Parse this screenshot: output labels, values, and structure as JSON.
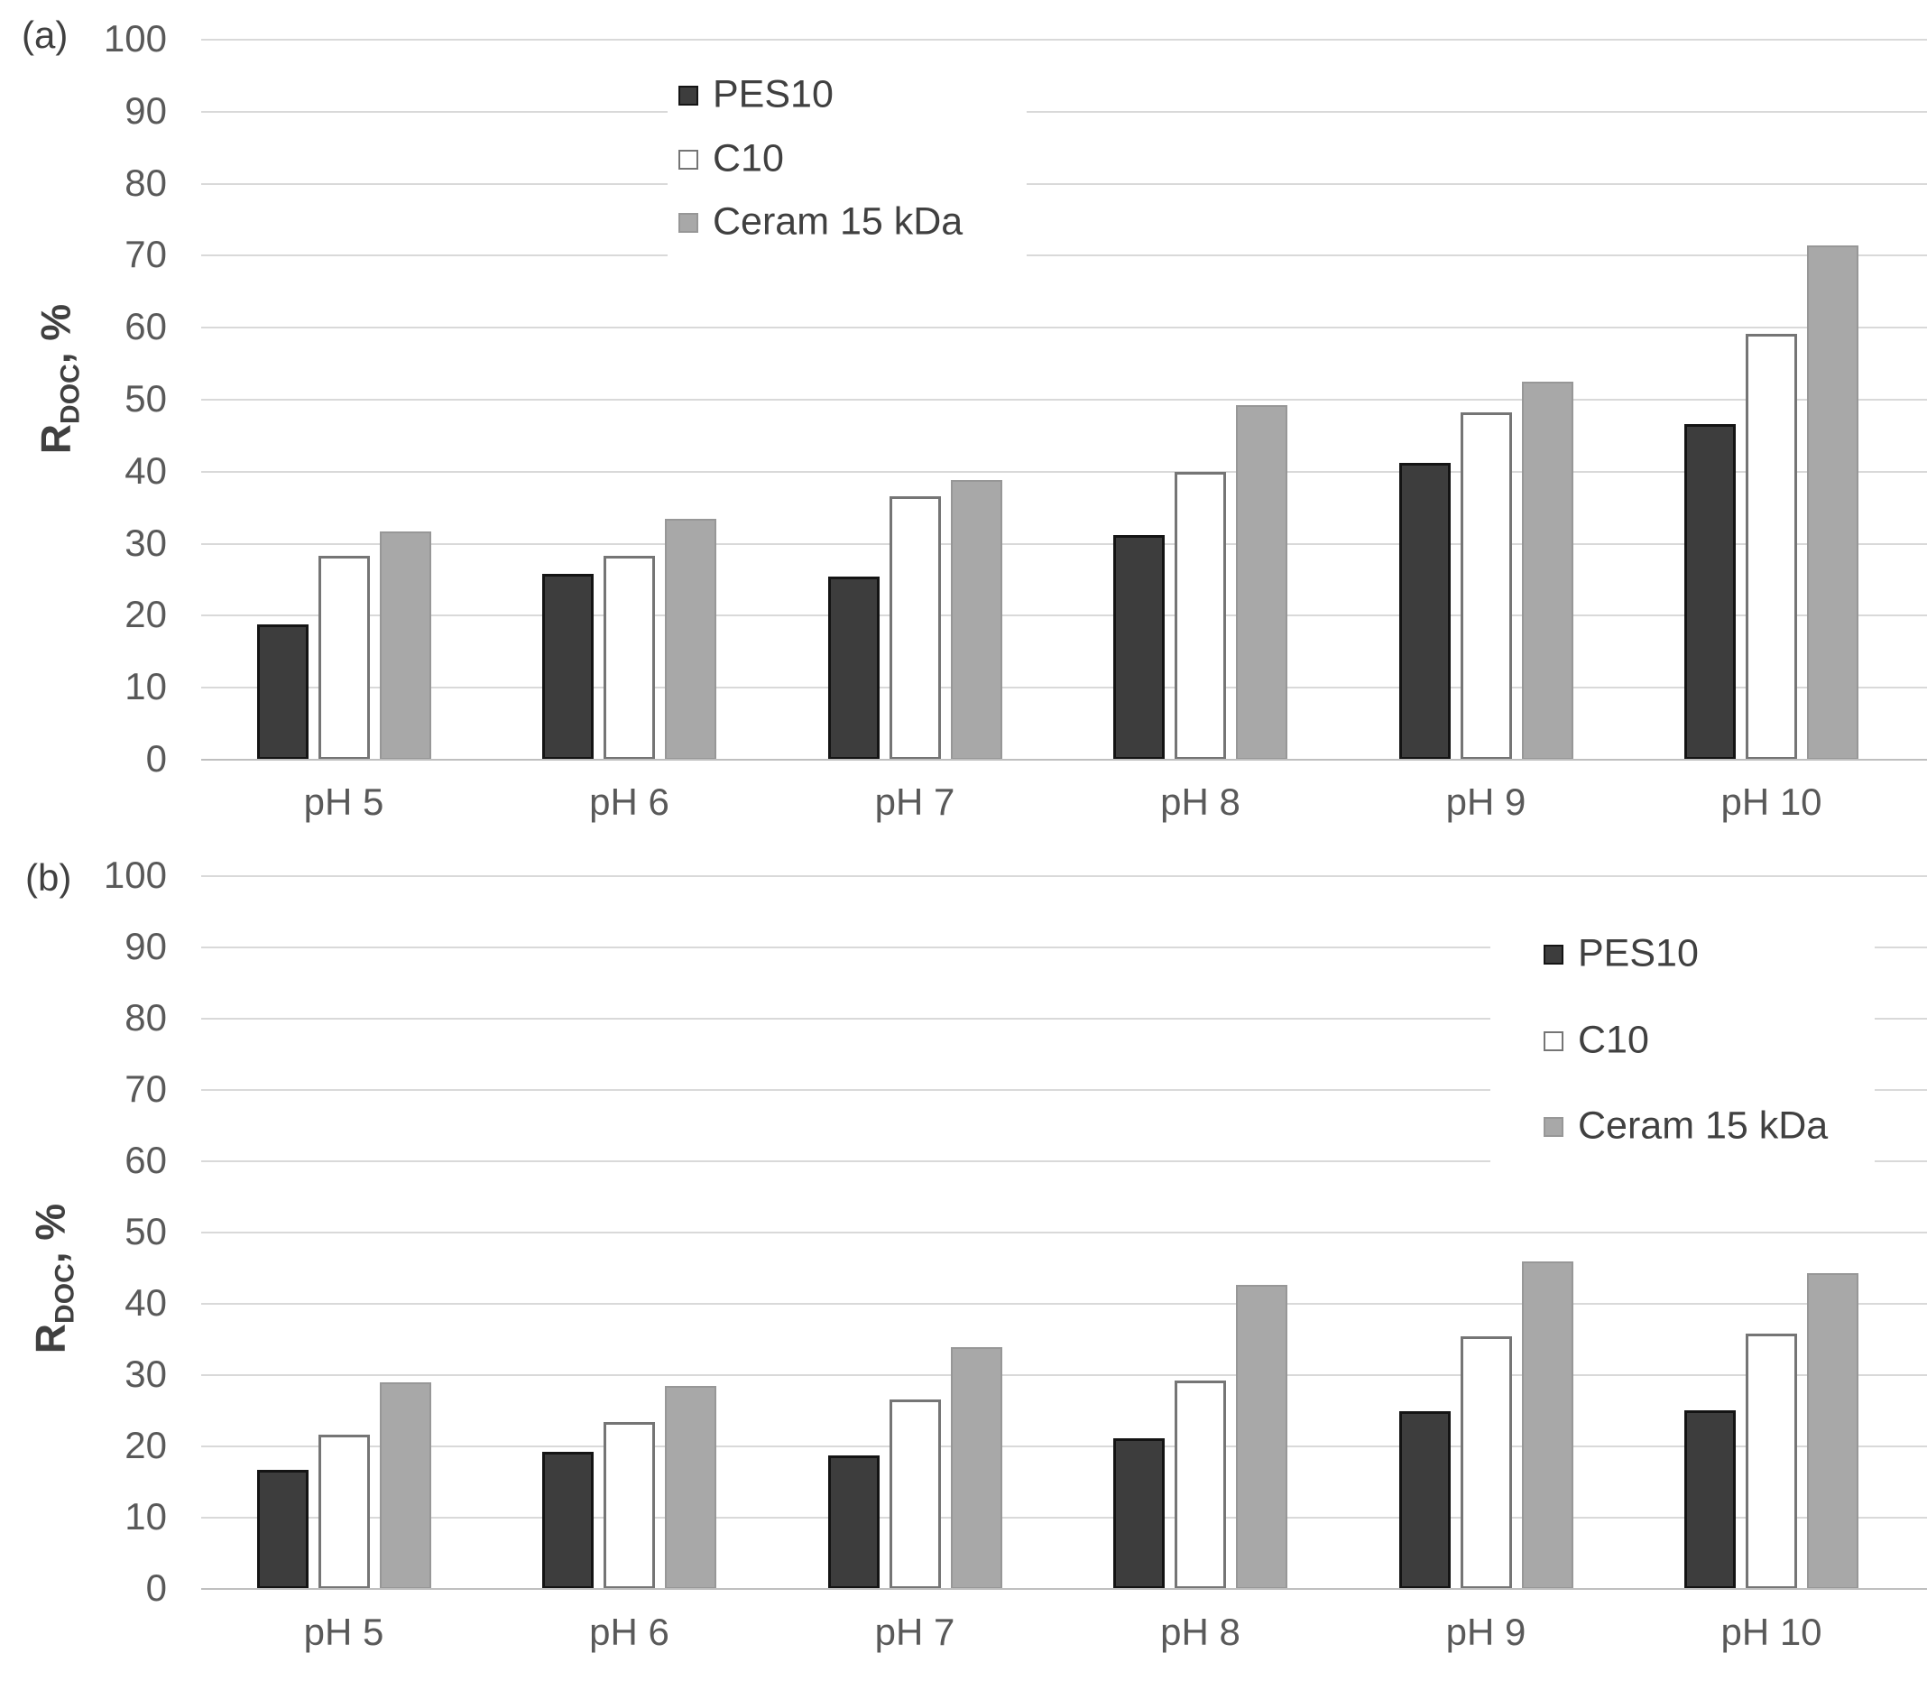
{
  "figure": {
    "background": "#ffffff"
  },
  "colors": {
    "gridline": "#d9d9d9",
    "axis_line": "#bfbfbf",
    "tick_text": "#595959",
    "label_text": "#404040"
  },
  "chart_data": [
    {
      "type": "bar",
      "panel_label": "(a)",
      "ylabel": {
        "main": "R",
        "sub": "DOC",
        "rest": ", %"
      },
      "ylim": [
        0,
        100
      ],
      "yticks": [
        0,
        10,
        20,
        30,
        40,
        50,
        60,
        70,
        80,
        90,
        100
      ],
      "grid": true,
      "legend_position": "inside-top-left-of-plot",
      "categories": [
        "pH 5",
        "pH 6",
        "pH 7",
        "pH 8",
        "pH 9",
        "pH 10"
      ],
      "series": [
        {
          "name": "PES10",
          "fill": "#3d3d3d",
          "border": "#141414",
          "values": [
            18.8,
            25.8,
            25.5,
            31.2,
            41.2,
            46.6
          ]
        },
        {
          "name": "C10",
          "fill": "#ffffff",
          "border": "#757575",
          "values": [
            28.3,
            28.3,
            36.6,
            40.0,
            48.3,
            59.2
          ]
        },
        {
          "name": "Ceram 15 kDa",
          "fill": "#a8a8a8",
          "border": "#979797",
          "values": [
            31.7,
            33.4,
            38.8,
            49.2,
            52.5,
            71.4
          ]
        }
      ]
    },
    {
      "type": "bar",
      "panel_label": "(b)",
      "ylabel": {
        "main": "R",
        "sub": "DOC",
        "rest": ", %"
      },
      "ylim": [
        0,
        100
      ],
      "yticks": [
        0,
        10,
        20,
        30,
        40,
        50,
        60,
        70,
        80,
        90,
        100
      ],
      "grid": true,
      "legend_position": "inside-top-right-of-plot",
      "categories": [
        "pH 5",
        "pH 6",
        "pH 7",
        "pH 8",
        "pH 9",
        "pH 10"
      ],
      "series": [
        {
          "name": "PES10",
          "fill": "#3d3d3d",
          "border": "#141414",
          "values": [
            16.7,
            19.2,
            18.7,
            21.2,
            25.0,
            25.1
          ]
        },
        {
          "name": "C10",
          "fill": "#ffffff",
          "border": "#757575",
          "values": [
            21.7,
            23.4,
            26.6,
            29.2,
            35.4,
            35.8
          ]
        },
        {
          "name": "Ceram 15 kDa",
          "fill": "#a8a8a8",
          "border": "#979797",
          "values": [
            29.0,
            28.5,
            33.9,
            42.7,
            46.0,
            44.3
          ]
        }
      ]
    }
  ]
}
